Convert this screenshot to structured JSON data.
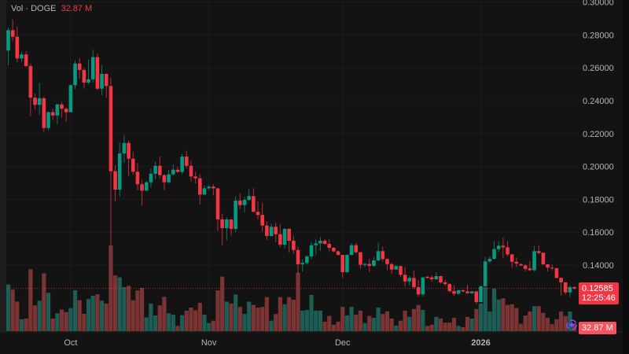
{
  "legend": {
    "label": "Vol · DOGE",
    "value": "32.87 M"
  },
  "last_price": {
    "price": "0.12585",
    "countdown": "12:25:46"
  },
  "last_volume": "32.87 M",
  "colors": {
    "up": "#089981",
    "down": "#f23645",
    "up_volume": "#1d5d55",
    "down_volume": "#7b3434",
    "background": "#131313",
    "grid": "#1d1d1d",
    "axis_text": "#b2b5be",
    "indicator_icon": "#7b4dff"
  },
  "chart_data": {
    "type": "candlestick",
    "interval": "1D",
    "symbol": "DOGE",
    "y_ticks": [
      "0.30000",
      "0.28000",
      "0.26000",
      "0.24000",
      "0.22000",
      "0.20000",
      "0.18000",
      "0.16000",
      "0.14000"
    ],
    "ylim": [
      0.1135,
      0.3005
    ],
    "x_ticks": [
      {
        "label": "Oct",
        "date": "2025-10-01"
      },
      {
        "label": "Nov",
        "date": "2025-11-01"
      },
      {
        "label": "Dec",
        "date": "2025-12-01"
      },
      {
        "label": "2026",
        "date": "2026-01-01"
      }
    ],
    "volume_unit": "M",
    "candles_fields": [
      "open",
      "high",
      "low",
      "close",
      "volume"
    ],
    "candles": [
      [
        0.2705,
        0.2845,
        0.2614,
        0.2829,
        196
      ],
      [
        0.2829,
        0.2893,
        0.276,
        0.2789,
        174
      ],
      [
        0.2789,
        0.2853,
        0.2634,
        0.2657,
        124
      ],
      [
        0.2657,
        0.2698,
        0.2634,
        0.2681,
        50
      ],
      [
        0.2681,
        0.27,
        0.2606,
        0.2611,
        53
      ],
      [
        0.2611,
        0.2626,
        0.2306,
        0.2418,
        260
      ],
      [
        0.2418,
        0.2443,
        0.2346,
        0.2375,
        108
      ],
      [
        0.2375,
        0.251,
        0.2314,
        0.2415,
        128
      ],
      [
        0.2415,
        0.2425,
        0.221,
        0.2234,
        243
      ],
      [
        0.2234,
        0.2335,
        0.222,
        0.233,
        161
      ],
      [
        0.233,
        0.235,
        0.2282,
        0.231,
        53
      ],
      [
        0.231,
        0.2382,
        0.2255,
        0.2377,
        75
      ],
      [
        0.2377,
        0.2393,
        0.2297,
        0.2351,
        91
      ],
      [
        0.2351,
        0.2359,
        0.2271,
        0.233,
        80
      ],
      [
        0.233,
        0.2499,
        0.2328,
        0.2494,
        97
      ],
      [
        0.2494,
        0.2645,
        0.247,
        0.2626,
        172
      ],
      [
        0.2626,
        0.2659,
        0.2534,
        0.2587,
        130
      ],
      [
        0.2587,
        0.2598,
        0.2473,
        0.251,
        73
      ],
      [
        0.251,
        0.2651,
        0.2502,
        0.253,
        135
      ],
      [
        0.253,
        0.271,
        0.251,
        0.2665,
        149
      ],
      [
        0.2665,
        0.2687,
        0.2465,
        0.2473,
        155
      ],
      [
        0.2473,
        0.2617,
        0.2434,
        0.2563,
        128
      ],
      [
        0.2563,
        0.2565,
        0.2418,
        0.2489,
        116
      ],
      [
        0.2489,
        0.2542,
        0.1515,
        0.1971,
        359
      ],
      [
        0.1971,
        0.2008,
        0.1788,
        0.1859,
        234
      ],
      [
        0.1859,
        0.2146,
        0.1816,
        0.2079,
        226
      ],
      [
        0.2079,
        0.2188,
        0.2023,
        0.2143,
        185
      ],
      [
        0.2143,
        0.2158,
        0.1941,
        0.2047,
        190
      ],
      [
        0.2047,
        0.209,
        0.1948,
        0.1968,
        130
      ],
      [
        0.1968,
        0.2021,
        0.1856,
        0.1891,
        171
      ],
      [
        0.1891,
        0.1918,
        0.176,
        0.1853,
        182
      ],
      [
        0.1853,
        0.1912,
        0.1848,
        0.1904,
        58
      ],
      [
        0.1904,
        0.1988,
        0.1873,
        0.1956,
        116
      ],
      [
        0.1956,
        0.2028,
        0.1924,
        0.2004,
        66
      ],
      [
        0.2004,
        0.206,
        0.1928,
        0.1947,
        108
      ],
      [
        0.1947,
        0.1952,
        0.1856,
        0.1904,
        144
      ],
      [
        0.1904,
        0.1979,
        0.1898,
        0.1952,
        75
      ],
      [
        0.1952,
        0.2012,
        0.1944,
        0.198,
        69
      ],
      [
        0.198,
        0.1999,
        0.1962,
        0.1967,
        22
      ],
      [
        0.1967,
        0.2076,
        0.1952,
        0.206,
        67
      ],
      [
        0.206,
        0.2095,
        0.1988,
        0.2004,
        86
      ],
      [
        0.2004,
        0.2034,
        0.1909,
        0.1939,
        99
      ],
      [
        0.1939,
        0.1968,
        0.1896,
        0.1928,
        88
      ],
      [
        0.1928,
        0.1952,
        0.1768,
        0.1829,
        119
      ],
      [
        0.1829,
        0.1883,
        0.1824,
        0.1867,
        69
      ],
      [
        0.1867,
        0.1886,
        0.1856,
        0.1877,
        34
      ],
      [
        0.1877,
        0.1893,
        0.1824,
        0.1867,
        44
      ],
      [
        0.1867,
        0.1868,
        0.1606,
        0.1678,
        171
      ],
      [
        0.1678,
        0.1713,
        0.1521,
        0.1625,
        229
      ],
      [
        0.1625,
        0.169,
        0.155,
        0.1678,
        124
      ],
      [
        0.1678,
        0.1678,
        0.158,
        0.162,
        116
      ],
      [
        0.162,
        0.182,
        0.1601,
        0.1792,
        154
      ],
      [
        0.1792,
        0.1837,
        0.174,
        0.1765,
        102
      ],
      [
        0.1765,
        0.1817,
        0.1722,
        0.1797,
        72
      ],
      [
        0.1797,
        0.1861,
        0.1792,
        0.182,
        124
      ],
      [
        0.182,
        0.1868,
        0.1722,
        0.1724,
        110
      ],
      [
        0.1724,
        0.1788,
        0.1676,
        0.1705,
        99
      ],
      [
        0.1705,
        0.178,
        0.1604,
        0.1641,
        102
      ],
      [
        0.1641,
        0.1668,
        0.1553,
        0.1577,
        143
      ],
      [
        0.1577,
        0.1652,
        0.1574,
        0.1633,
        44
      ],
      [
        0.1633,
        0.1658,
        0.154,
        0.1588,
        72
      ],
      [
        0.1588,
        0.165,
        0.1509,
        0.1524,
        143
      ],
      [
        0.1524,
        0.1625,
        0.1501,
        0.162,
        113
      ],
      [
        0.162,
        0.1625,
        0.1478,
        0.1548,
        143
      ],
      [
        0.1548,
        0.158,
        0.147,
        0.1492,
        132
      ],
      [
        0.1492,
        0.1513,
        0.1346,
        0.1405,
        245
      ],
      [
        0.1405,
        0.1434,
        0.1359,
        0.1413,
        86
      ],
      [
        0.1413,
        0.1461,
        0.1403,
        0.1453,
        89
      ],
      [
        0.1453,
        0.1541,
        0.1437,
        0.1521,
        152
      ],
      [
        0.1521,
        0.1557,
        0.1461,
        0.1532,
        86
      ],
      [
        0.1532,
        0.1572,
        0.1487,
        0.1548,
        86
      ],
      [
        0.1548,
        0.1557,
        0.1526,
        0.1529,
        40
      ],
      [
        0.1529,
        0.1557,
        0.1484,
        0.1505,
        64
      ],
      [
        0.1505,
        0.151,
        0.1478,
        0.1484,
        27
      ],
      [
        0.1484,
        0.149,
        0.1457,
        0.1462,
        40
      ],
      [
        0.1462,
        0.1462,
        0.1322,
        0.1357,
        102
      ],
      [
        0.1357,
        0.1465,
        0.1354,
        0.1462,
        66
      ],
      [
        0.1462,
        0.1534,
        0.146,
        0.1521,
        102
      ],
      [
        0.1521,
        0.1534,
        0.147,
        0.1478,
        69
      ],
      [
        0.1478,
        0.1481,
        0.1378,
        0.1402,
        86
      ],
      [
        0.1401,
        0.1413,
        0.139,
        0.1407,
        34
      ],
      [
        0.1407,
        0.1439,
        0.1357,
        0.1395,
        64
      ],
      [
        0.1395,
        0.1452,
        0.139,
        0.1429,
        56
      ],
      [
        0.1429,
        0.1537,
        0.1423,
        0.1485,
        99
      ],
      [
        0.1485,
        0.1511,
        0.1421,
        0.1437,
        72
      ],
      [
        0.1437,
        0.1442,
        0.137,
        0.1406,
        83
      ],
      [
        0.1406,
        0.1414,
        0.1346,
        0.1373,
        53
      ],
      [
        0.1373,
        0.1402,
        0.137,
        0.1394,
        23
      ],
      [
        0.1394,
        0.1397,
        0.1327,
        0.1341,
        44
      ],
      [
        0.1341,
        0.1389,
        0.1271,
        0.1301,
        86
      ],
      [
        0.1301,
        0.1333,
        0.1277,
        0.1322,
        60
      ],
      [
        0.1322,
        0.1367,
        0.1255,
        0.1266,
        93
      ],
      [
        0.1266,
        0.1311,
        0.1208,
        0.1222,
        110
      ],
      [
        0.1222,
        0.133,
        0.1208,
        0.1325,
        89
      ],
      [
        0.133,
        0.133,
        0.1317,
        0.1322,
        22
      ],
      [
        0.1325,
        0.1338,
        0.1298,
        0.1314,
        27
      ],
      [
        0.1314,
        0.1357,
        0.1309,
        0.1333,
        60
      ],
      [
        0.1333,
        0.1335,
        0.1287,
        0.1295,
        53
      ],
      [
        0.1295,
        0.1311,
        0.1274,
        0.1285,
        36
      ],
      [
        0.1285,
        0.129,
        0.1233,
        0.1242,
        36
      ],
      [
        0.1242,
        0.1277,
        0.1214,
        0.1226,
        56
      ],
      [
        0.1226,
        0.125,
        0.1221,
        0.1247,
        22
      ],
      [
        0.1247,
        0.1253,
        0.1234,
        0.124,
        17
      ],
      [
        0.124,
        0.1282,
        0.1226,
        0.1229,
        60
      ],
      [
        0.1229,
        0.1242,
        0.1226,
        0.124,
        53
      ],
      [
        0.124,
        0.1242,
        0.1163,
        0.1175,
        93
      ],
      [
        0.1175,
        0.1277,
        0.1175,
        0.1271,
        116
      ],
      [
        0.1271,
        0.1449,
        0.1269,
        0.1422,
        185
      ],
      [
        0.1422,
        0.1454,
        0.1414,
        0.1438,
        83
      ],
      [
        0.1438,
        0.1545,
        0.1434,
        0.1497,
        179
      ],
      [
        0.1497,
        0.1545,
        0.1478,
        0.1518,
        133
      ],
      [
        0.1518,
        0.1569,
        0.1441,
        0.1508,
        138
      ],
      [
        0.1508,
        0.1545,
        0.1452,
        0.1465,
        110
      ],
      [
        0.1465,
        0.1468,
        0.1382,
        0.142,
        113
      ],
      [
        0.142,
        0.1446,
        0.1388,
        0.1409,
        97
      ],
      [
        0.1406,
        0.1412,
        0.1393,
        0.1398,
        31
      ],
      [
        0.1398,
        0.1404,
        0.1361,
        0.1377,
        66
      ],
      [
        0.138,
        0.1425,
        0.1364,
        0.1369,
        83
      ],
      [
        0.1369,
        0.1516,
        0.1361,
        0.1485,
        105
      ],
      [
        0.1485,
        0.1521,
        0.1466,
        0.1474,
        105
      ],
      [
        0.1475,
        0.1476,
        0.1402,
        0.1405,
        77
      ],
      [
        0.1405,
        0.1407,
        0.1361,
        0.1385,
        56
      ],
      [
        0.1385,
        0.1404,
        0.1369,
        0.1381,
        29
      ],
      [
        0.1381,
        0.1383,
        0.1319,
        0.1322,
        50
      ],
      [
        0.1322,
        0.1325,
        0.1215,
        0.1295,
        83
      ],
      [
        0.1295,
        0.1295,
        0.1221,
        0.1234,
        64
      ],
      [
        0.1234,
        0.1277,
        0.1206,
        0.1266,
        83
      ],
      [
        0.1266,
        0.1272,
        0.125,
        0.12585,
        32.87
      ]
    ]
  }
}
